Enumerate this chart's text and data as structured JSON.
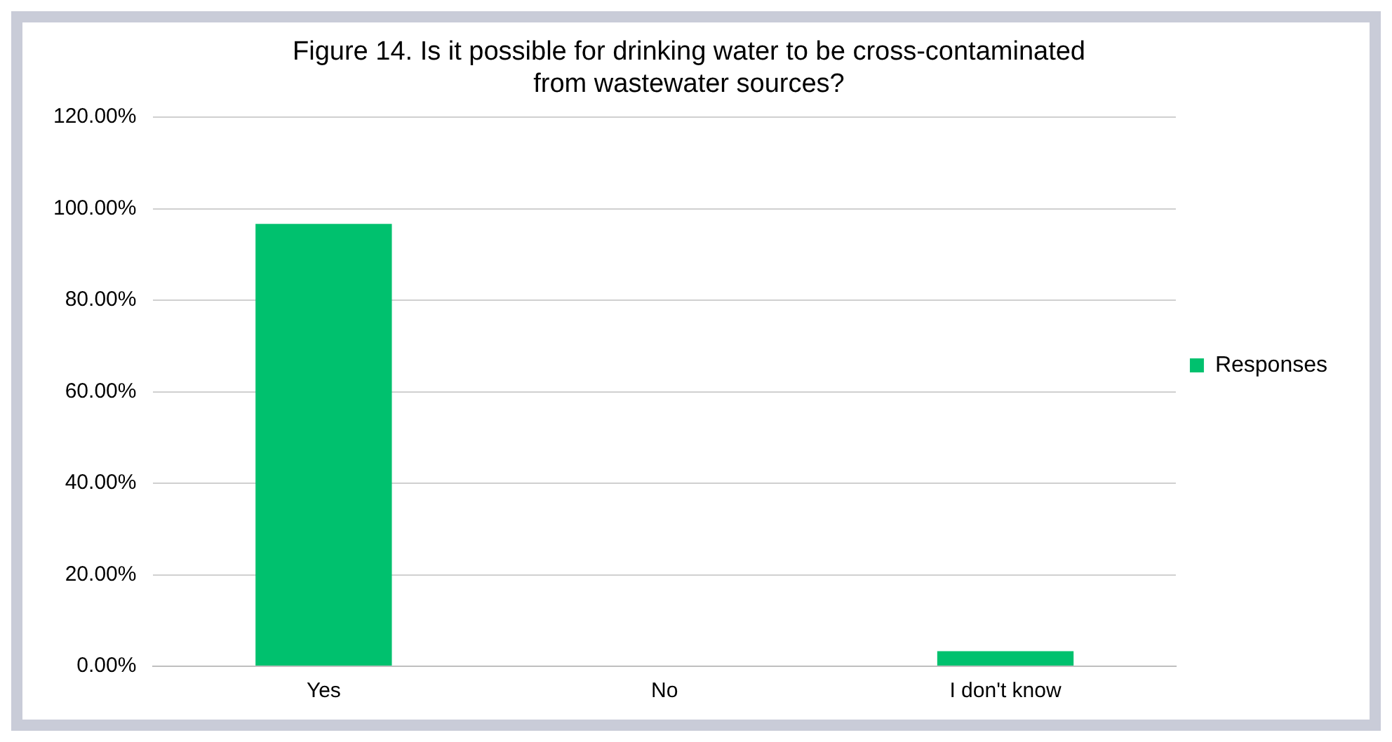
{
  "chart_data": {
    "type": "bar",
    "title": [
      "Figure 14. Is it possible for drinking water to be cross-contaminated",
      "from wastewater sources?"
    ],
    "categories": [
      "Yes",
      "No",
      "I don't know"
    ],
    "series": [
      {
        "name": "Responses",
        "color": "#00c16e",
        "values": [
          96.7,
          0,
          3.3
        ]
      }
    ],
    "ylim": [
      0,
      120
    ],
    "yticks": [
      {
        "value": 0,
        "label": "0.00%"
      },
      {
        "value": 20,
        "label": "20.00%"
      },
      {
        "value": 40,
        "label": "40.00%"
      },
      {
        "value": 60,
        "label": "60.00%"
      },
      {
        "value": 80,
        "label": "80.00%"
      },
      {
        "value": 100,
        "label": "100.00%"
      },
      {
        "value": 120,
        "label": "120.00%"
      }
    ],
    "grid": "y",
    "legend": "right"
  }
}
